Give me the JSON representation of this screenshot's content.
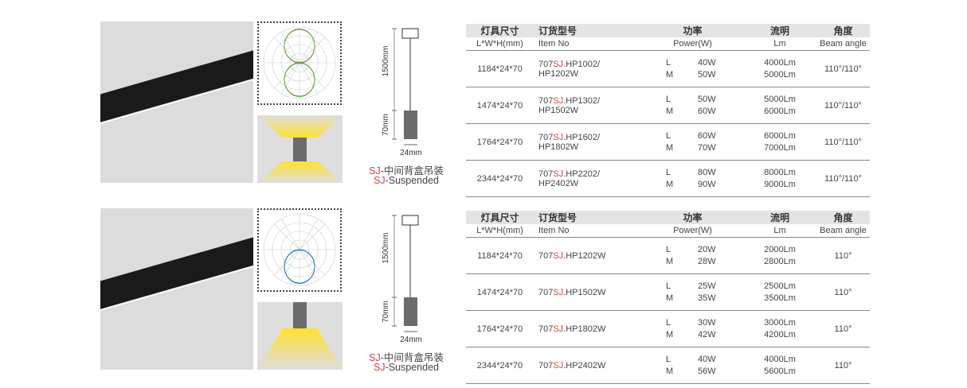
{
  "headers": {
    "size_cn": "灯具尺寸",
    "size_en": "L*W*H(mm)",
    "item_cn": "订货型号",
    "item_en": "Item No",
    "power_cn": "功率",
    "power_en": "Power(W)",
    "lm_cn": "流明",
    "lm_en": "Lm",
    "angle_cn": "角度",
    "angle_en": "Beam angle"
  },
  "drawing": {
    "height_cable": "1500mm",
    "height_body": "70mm",
    "width": "24mm",
    "caption_prefix": "SJ",
    "caption_cn": "-中间背盒吊装",
    "caption_en": "-Suspended"
  },
  "blocks": [
    {
      "rows": [
        {
          "size": "1184*24*70",
          "item_pre": "707",
          "item_sj": "SJ",
          "item_post": ".HP1002/",
          "item_line2": "HP1202W",
          "modes": [
            "L",
            "M"
          ],
          "power": [
            "40W",
            "50W"
          ],
          "lm": [
            "4000Lm",
            "5000Lm"
          ],
          "angle": "110°/110°"
        },
        {
          "size": "1474*24*70",
          "item_pre": "707",
          "item_sj": "SJ",
          "item_post": ".HP1302/",
          "item_line2": "HP1502W",
          "modes": [
            "L",
            "M"
          ],
          "power": [
            "50W",
            "60W"
          ],
          "lm": [
            "5000Lm",
            "6000Lm"
          ],
          "angle": "110°/110°"
        },
        {
          "size": "1764*24*70",
          "item_pre": "707",
          "item_sj": "SJ",
          "item_post": ".HP1602/",
          "item_line2": "HP1802W",
          "modes": [
            "L",
            "M"
          ],
          "power": [
            "60W",
            "70W"
          ],
          "lm": [
            "6000Lm",
            "7000Lm"
          ],
          "angle": "110°/110°"
        },
        {
          "size": "2344*24*70",
          "item_pre": "707",
          "item_sj": "SJ",
          "item_post": ".HP2202/",
          "item_line2": "HP2402W",
          "modes": [
            "L",
            "M"
          ],
          "power": [
            "80W",
            "90W"
          ],
          "lm": [
            "8000Lm",
            "9000Lm"
          ],
          "angle": "110°/110°"
        }
      ]
    },
    {
      "rows": [
        {
          "size": "1184*24*70",
          "item_pre": "707",
          "item_sj": "SJ",
          "item_post": ".HP1202W",
          "item_line2": "",
          "modes": [
            "L",
            "M"
          ],
          "power": [
            "20W",
            "28W"
          ],
          "lm": [
            "2000Lm",
            "2800Lm"
          ],
          "angle": "110°"
        },
        {
          "size": "1474*24*70",
          "item_pre": "707",
          "item_sj": "SJ",
          "item_post": ".HP1502W",
          "item_line2": "",
          "modes": [
            "L",
            "M"
          ],
          "power": [
            "25W",
            "35W"
          ],
          "lm": [
            "2500Lm",
            "3500Lm"
          ],
          "angle": "110°"
        },
        {
          "size": "1764*24*70",
          "item_pre": "707",
          "item_sj": "SJ",
          "item_post": ".HP1802W",
          "item_line2": "",
          "modes": [
            "L",
            "M"
          ],
          "power": [
            "30W",
            "42W"
          ],
          "lm": [
            "3000Lm",
            "4200Lm"
          ],
          "angle": "110°"
        },
        {
          "size": "2344*24*70",
          "item_pre": "707",
          "item_sj": "SJ",
          "item_post": ".HP2402W",
          "item_line2": "",
          "modes": [
            "L",
            "M"
          ],
          "power": [
            "40W",
            "56W"
          ],
          "lm": [
            "4000Lm",
            "5600Lm"
          ],
          "angle": "110°"
        }
      ]
    }
  ],
  "colors": {
    "accent": "#d9423c",
    "header_bg": "#e4e4e4",
    "light": "#ffe030"
  }
}
